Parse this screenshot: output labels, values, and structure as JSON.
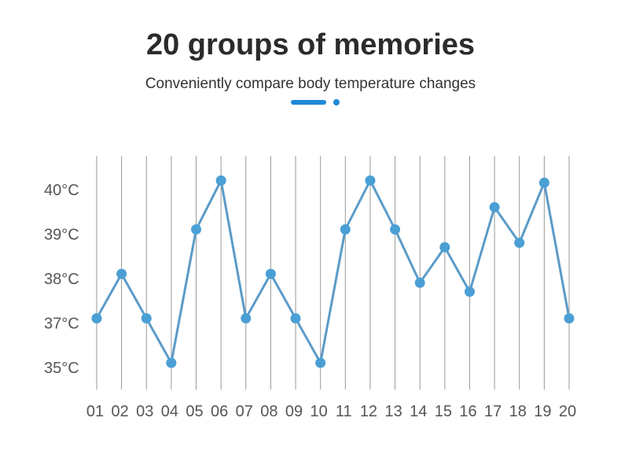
{
  "title": "20 groups of memories",
  "subtitle": "Conveniently compare body temperature changes",
  "colors": {
    "accent": "#1e88d6",
    "line": "#5b9bc8",
    "marker": "#4a9fd5",
    "grid": "#999999"
  },
  "chart_data": {
    "type": "line",
    "title": "",
    "xlabel": "",
    "ylabel": "",
    "categories": [
      "01",
      "02",
      "03",
      "04",
      "05",
      "06",
      "07",
      "08",
      "09",
      "10",
      "11",
      "12",
      "13",
      "14",
      "15",
      "16",
      "17",
      "18",
      "19",
      "20"
    ],
    "y_ticks": [
      {
        "value": 40,
        "label": "40°C"
      },
      {
        "value": 39,
        "label": "39°C"
      },
      {
        "value": 38,
        "label": "38°C"
      },
      {
        "value": 37,
        "label": "37°C"
      },
      {
        "value": 35,
        "label": "35°C"
      }
    ],
    "series": [
      {
        "name": "Body temperature",
        "values": [
          37,
          38,
          37,
          35,
          39,
          40.1,
          37,
          38,
          37,
          35,
          39,
          40.1,
          39,
          37.8,
          38.6,
          37.6,
          39.5,
          38.7,
          40.05,
          37
        ]
      }
    ],
    "grid": "vertical lines per category"
  }
}
